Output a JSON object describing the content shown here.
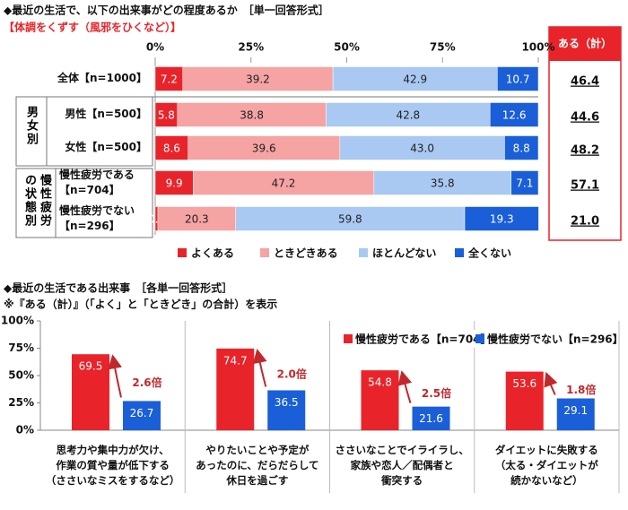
{
  "chart_data": [
    {
      "type": "stacked_bar",
      "orientation": "horizontal",
      "title": "◆最近の生活で、以下の出来事がどの程度あるか　［単一回答形式］",
      "subtitle": "【体調をくずす（風邪をひくなど）】",
      "categories": [
        "全体【n=1000】",
        "男性【n=500】",
        "女性【n=500】",
        "慢性疲労である\n【n=704】",
        "慢性疲労でない\n【n=296】"
      ],
      "groups": [
        "男女別",
        "慢性疲労の状態別"
      ],
      "series": [
        {
          "name": "よくある",
          "color": "#e8242a",
          "values": [
            7.2,
            5.8,
            8.6,
            9.9,
            0.7
          ]
        },
        {
          "name": "ときどきある",
          "color": "#f5a3a3",
          "values": [
            39.2,
            38.8,
            39.6,
            47.2,
            20.3
          ]
        },
        {
          "name": "ほとんどない",
          "color": "#a9c9f2",
          "values": [
            42.9,
            42.8,
            43.0,
            35.8,
            59.8
          ],
          "value_labels": [
            "42.9",
            "42.8",
            "43.0",
            "35.8",
            "59.8"
          ]
        },
        {
          "name": "全くない",
          "color": "#1a5fd8",
          "values": [
            10.7,
            12.6,
            8.8,
            7.1,
            19.3
          ]
        }
      ],
      "xlim": [
        0,
        100
      ],
      "xticks": [
        {
          "value": 0,
          "label": "0%"
        },
        {
          "value": 25,
          "label": "25%"
        },
        {
          "value": 50,
          "label": "50%"
        },
        {
          "value": 75,
          "label": "75%"
        },
        {
          "value": 100,
          "label": "100%"
        }
      ],
      "totals": {
        "title": "ある（計）",
        "values": [
          46.4,
          44.6,
          48.2,
          57.1,
          21.0
        ],
        "value_labels": [
          "46.4",
          "44.6",
          "48.2",
          "57.1",
          "21.0"
        ]
      },
      "legend": "bottom"
    },
    {
      "type": "bar",
      "title": "◆最近の生活である出来事　［各単一回答形式］",
      "subtitle": "※『ある（計）』（「よく」と「ときどき」の合計）を表示",
      "categories": [
        "思考力や集中力が欠け、\n作業の質や量が低下する\n（ささいなミスをするなど）",
        "やりたいことや予定が\nあったのに、だらだらして\n休日を過ごす",
        "ささいなことでイライラし、\n家族や恋人／配偶者と\n衝突する",
        "ダイエットに失敗する\n（太る・ダイエットが\n続かないなど）"
      ],
      "series": [
        {
          "name": "慢性疲労である【n=704】",
          "color": "#e8242a",
          "values": [
            69.5,
            74.7,
            54.8,
            53.6
          ]
        },
        {
          "name": "慢性疲労でない【n=296】",
          "color": "#1a5fd8",
          "values": [
            26.7,
            36.5,
            21.6,
            29.1
          ]
        }
      ],
      "annotations": [
        "2.6倍",
        "2.0倍",
        "2.5倍",
        "1.8倍"
      ],
      "ylim": [
        0,
        100
      ],
      "yticks": [
        {
          "value": 0,
          "label": "0%"
        },
        {
          "value": 25,
          "label": "25%"
        },
        {
          "value": 50,
          "label": "50%"
        },
        {
          "value": 75,
          "label": "75%"
        },
        {
          "value": 100,
          "label": "100%"
        }
      ],
      "legend": "top-right"
    }
  ]
}
